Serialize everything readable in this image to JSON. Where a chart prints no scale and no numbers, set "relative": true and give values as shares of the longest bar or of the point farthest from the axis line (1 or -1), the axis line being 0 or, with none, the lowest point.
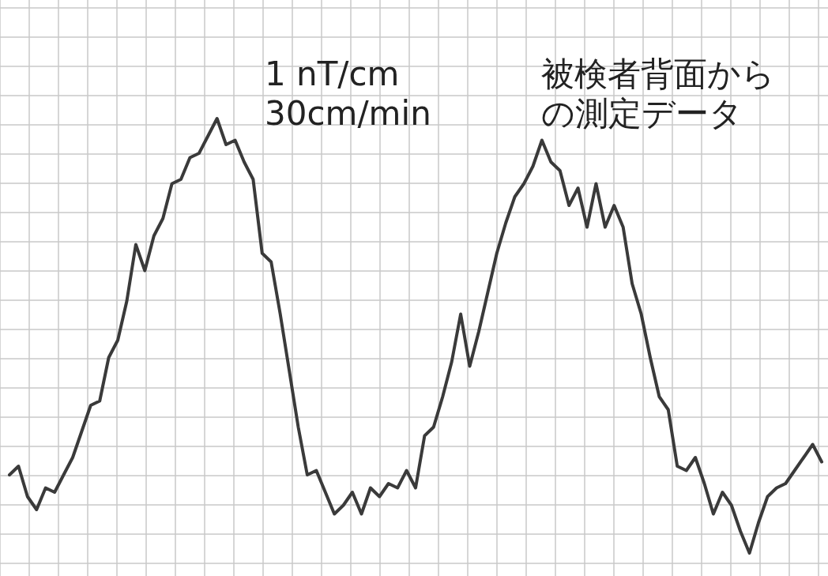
{
  "chart_data": {
    "type": "line",
    "relative": true,
    "grid": true,
    "color": "#3a3a3a",
    "categories": [
      null,
      null,
      null,
      null,
      null,
      null,
      null,
      null,
      null,
      null,
      null,
      null,
      null,
      null,
      null,
      null,
      null,
      null,
      null,
      null,
      null,
      null,
      null,
      null,
      null,
      null,
      null,
      null,
      null,
      null,
      null,
      null,
      null,
      null,
      null,
      null,
      null,
      null,
      null,
      null,
      null,
      null,
      null,
      null,
      null,
      null,
      null,
      null,
      null,
      null,
      null,
      null,
      null,
      null,
      null,
      null,
      null,
      null,
      null,
      null,
      null,
      null,
      null,
      null,
      null,
      null,
      null,
      null,
      null,
      null,
      null,
      null,
      null,
      null,
      null,
      null,
      null,
      null,
      null,
      null,
      null,
      null,
      null,
      null,
      null,
      null,
      null,
      null,
      null,
      null,
      null
    ],
    "values": [
      0.18,
      0.2,
      0.13,
      0.1,
      0.15,
      0.14,
      0.18,
      0.22,
      0.28,
      0.34,
      0.35,
      0.45,
      0.49,
      0.58,
      0.71,
      0.65,
      0.73,
      0.77,
      0.85,
      0.86,
      0.91,
      0.92,
      0.96,
      1,
      0.94,
      0.95,
      0.9,
      0.86,
      0.69,
      0.67,
      0.55,
      0.42,
      0.29,
      0.18,
      0.19,
      0.14,
      0.09,
      0.11,
      0.14,
      0.09,
      0.15,
      0.13,
      0.16,
      0.15,
      0.19,
      0.15,
      0.27,
      0.29,
      0.36,
      0.44,
      0.55,
      0.43,
      0.51,
      0.6,
      0.69,
      0.76,
      0.82,
      0.85,
      0.89,
      0.95,
      0.9,
      0.88,
      0.8,
      0.84,
      0.75,
      0.85,
      0.75,
      0.8,
      0.75,
      0.62,
      0.55,
      0.45,
      0.36,
      0.33,
      0.2,
      0.19,
      0.22,
      0.16,
      0.09,
      0.14,
      0.11,
      0.05,
      0,
      0.07,
      0.13,
      0.15,
      0.16,
      0.19,
      0.22,
      0.25,
      0.21
    ],
    "annotations": [
      "1 nT/cm",
      "30cm/min",
      "被検者背面から",
      "の測定データ"
    ]
  }
}
